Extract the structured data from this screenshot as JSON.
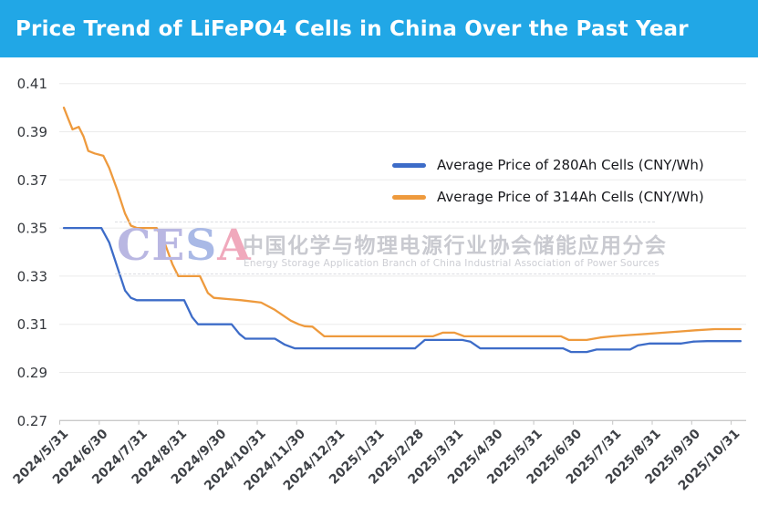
{
  "header": {
    "title": "Price Trend of LiFePO4 Cells in China Over the Past Year",
    "bg_color": "#21A7E6"
  },
  "legend": [
    {
      "label": "Average Price of 280Ah Cells (CNY/Wh)",
      "color": "#3D6CC8"
    },
    {
      "label": "Average Price of 314Ah Cells (CNY/Wh)",
      "color": "#EE9A3D"
    }
  ],
  "watermark": {
    "logo_letters": [
      {
        "ch": "C",
        "color": "#b9b7e2"
      },
      {
        "ch": "E",
        "color": "#b9b7e2"
      },
      {
        "ch": "S",
        "color": "#a9b9e6"
      },
      {
        "ch": "A",
        "color": "#f0a9bc"
      }
    ],
    "cn": "中国化学与物理电源行业协会储能应用分会",
    "en": "Energy Storage Application Branch of China Industrial Association of Power Sources"
  },
  "chart_data": {
    "type": "line",
    "title": "Price Trend of LiFePO4 Cells in China Over the Past Year",
    "xlabel": "",
    "ylabel": "",
    "unit": "CNY/Wh",
    "grid": true,
    "legend_position": "center-right, upper area",
    "ylim": [
      0.27,
      0.41
    ],
    "y_ticks": [
      0.27,
      0.29,
      0.31,
      0.33,
      0.35,
      0.37,
      0.39,
      0.41
    ],
    "x_tick_labels": [
      "2024/5/31",
      "2024/6/30",
      "2024/7/31",
      "2024/8/31",
      "2024/9/30",
      "2024/10/31",
      "2024/11/30",
      "2024/12/31",
      "2025/1/31",
      "2025/2/28",
      "2025/3/31",
      "2025/4/30",
      "2025/5/31",
      "2025/6/30",
      "2025/7/31",
      "2025/8/31",
      "2025/9/30",
      "2025/10/31"
    ],
    "x_unit_note": "series points use t = months after 2024/5/31 (0 = 2024/5/31, 17 = 2025/10/31)",
    "series": [
      {
        "name": "Average Price of 280Ah Cells (CNY/Wh)",
        "color": "#3D6CC8",
        "points": [
          [
            0,
            0.35
          ],
          [
            0.95,
            0.35
          ],
          [
            1.15,
            0.344
          ],
          [
            1.35,
            0.334
          ],
          [
            1.55,
            0.324
          ],
          [
            1.7,
            0.321
          ],
          [
            1.85,
            0.32
          ],
          [
            3.05,
            0.32
          ],
          [
            3.25,
            0.313
          ],
          [
            3.4,
            0.31
          ],
          [
            4.25,
            0.31
          ],
          [
            4.45,
            0.306
          ],
          [
            4.6,
            0.304
          ],
          [
            5.35,
            0.304
          ],
          [
            5.6,
            0.3015
          ],
          [
            5.85,
            0.3
          ],
          [
            8.9,
            0.3
          ],
          [
            9.15,
            0.3035
          ],
          [
            10.1,
            0.3035
          ],
          [
            10.3,
            0.3028
          ],
          [
            10.55,
            0.3
          ],
          [
            12.65,
            0.3
          ],
          [
            12.85,
            0.2985
          ],
          [
            13.25,
            0.2985
          ],
          [
            13.5,
            0.2995
          ],
          [
            14.35,
            0.2995
          ],
          [
            14.55,
            0.3012
          ],
          [
            14.85,
            0.302
          ],
          [
            15.65,
            0.302
          ],
          [
            15.95,
            0.3028
          ],
          [
            16.3,
            0.303
          ],
          [
            17.15,
            0.303
          ]
        ]
      },
      {
        "name": "Average Price of 314Ah Cells (CNY/Wh)",
        "color": "#EE9A3D",
        "points": [
          [
            0,
            0.4
          ],
          [
            0.12,
            0.395
          ],
          [
            0.22,
            0.391
          ],
          [
            0.38,
            0.392
          ],
          [
            0.5,
            0.388
          ],
          [
            0.62,
            0.382
          ],
          [
            0.78,
            0.381
          ],
          [
            1.0,
            0.38
          ],
          [
            1.15,
            0.375
          ],
          [
            1.35,
            0.366
          ],
          [
            1.55,
            0.356
          ],
          [
            1.7,
            0.351
          ],
          [
            1.85,
            0.35
          ],
          [
            2.35,
            0.35
          ],
          [
            2.55,
            0.344
          ],
          [
            2.75,
            0.335
          ],
          [
            2.9,
            0.33
          ],
          [
            3.45,
            0.33
          ],
          [
            3.65,
            0.323
          ],
          [
            3.8,
            0.321
          ],
          [
            4.5,
            0.32
          ],
          [
            5.0,
            0.319
          ],
          [
            5.35,
            0.316
          ],
          [
            5.75,
            0.3115
          ],
          [
            5.95,
            0.31
          ],
          [
            6.1,
            0.3092
          ],
          [
            6.3,
            0.309
          ],
          [
            6.6,
            0.305
          ],
          [
            9.35,
            0.305
          ],
          [
            9.6,
            0.3065
          ],
          [
            9.9,
            0.3065
          ],
          [
            10.15,
            0.305
          ],
          [
            12.6,
            0.305
          ],
          [
            12.8,
            0.3035
          ],
          [
            13.25,
            0.3035
          ],
          [
            13.6,
            0.3045
          ],
          [
            13.9,
            0.305
          ],
          [
            14.3,
            0.3055
          ],
          [
            14.75,
            0.306
          ],
          [
            15.2,
            0.3065
          ],
          [
            15.6,
            0.307
          ],
          [
            16.0,
            0.3075
          ],
          [
            16.5,
            0.308
          ],
          [
            17.15,
            0.308
          ]
        ]
      }
    ],
    "style": {
      "grid_color": "#ebebeb",
      "axis_color": "#c9c9c9",
      "tick_color": "#c4c4c4",
      "y_label_color": "#35383d",
      "x_label_color": "#3e4146"
    }
  }
}
